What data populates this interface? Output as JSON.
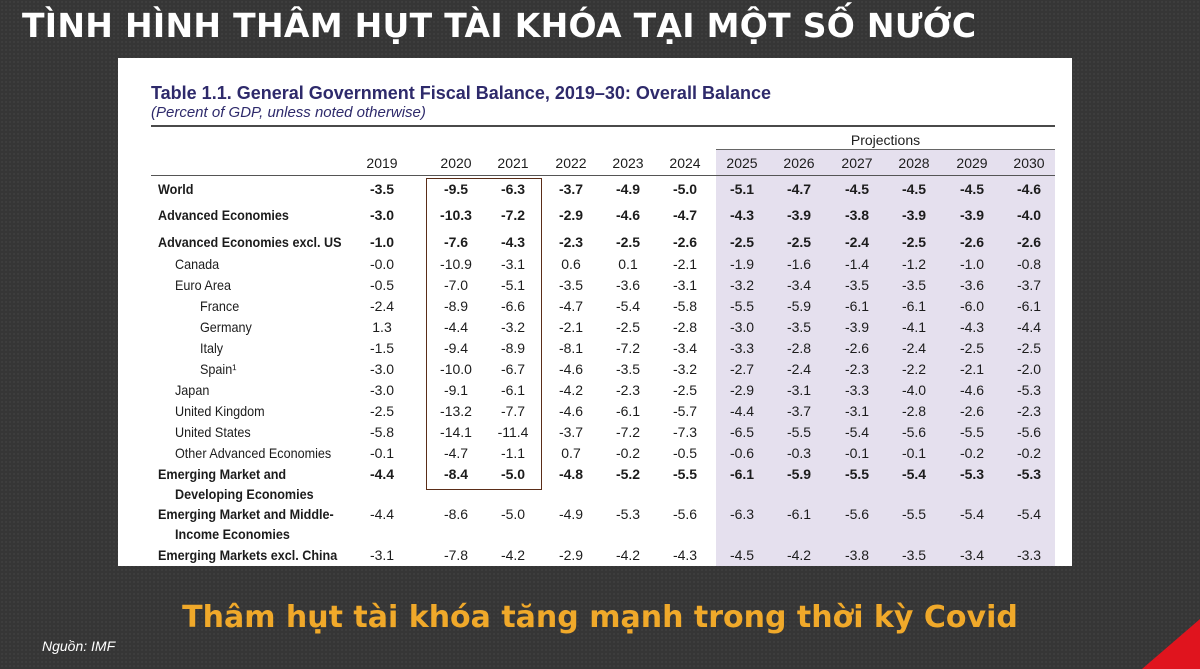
{
  "slide": {
    "title": "TÌNH HÌNH THÂM HỤT TÀI KHÓA TẠI MỘT SỐ NƯỚC",
    "caption": "Thâm hụt tài khóa tăng mạnh trong thời kỳ Covid",
    "source": "Nguồn: IMF",
    "accent_color": "#e0141e",
    "caption_color": "#f0a92a"
  },
  "table": {
    "heading": "Table 1.1. General Government Fiscal Balance, 2019–30: Overall Balance",
    "subheading": "(Percent of GDP, unless noted otherwise)",
    "projections_label": "Projections",
    "years": [
      "2019",
      "2020",
      "2021",
      "2022",
      "2023",
      "2024",
      "2025",
      "2026",
      "2027",
      "2028",
      "2029",
      "2030"
    ],
    "rows": [
      {
        "label": "World",
        "bold": true,
        "values": [
          "-3.5",
          "-9.5",
          "-6.3",
          "-3.7",
          "-4.9",
          "-5.0",
          "-5.1",
          "-4.7",
          "-4.5",
          "-4.5",
          "-4.5",
          "-4.6"
        ]
      },
      {
        "label": "Advanced Economies",
        "bold": true,
        "values": [
          "-3.0",
          "-10.3",
          "-7.2",
          "-2.9",
          "-4.6",
          "-4.7",
          "-4.3",
          "-3.9",
          "-3.8",
          "-3.9",
          "-3.9",
          "-4.0"
        ]
      },
      {
        "label": "Advanced Economies excl. US",
        "bold": true,
        "values": [
          "-1.0",
          "-7.6",
          "-4.3",
          "-2.3",
          "-2.5",
          "-2.6",
          "-2.5",
          "-2.5",
          "-2.4",
          "-2.5",
          "-2.6",
          "-2.6"
        ]
      },
      {
        "label": "Canada",
        "values": [
          "-0.0",
          "-10.9",
          "-3.1",
          "0.6",
          "0.1",
          "-2.1",
          "-1.9",
          "-1.6",
          "-1.4",
          "-1.2",
          "-1.0",
          "-0.8"
        ]
      },
      {
        "label": "Euro Area",
        "values": [
          "-0.5",
          "-7.0",
          "-5.1",
          "-3.5",
          "-3.6",
          "-3.1",
          "-3.2",
          "-3.4",
          "-3.5",
          "-3.5",
          "-3.6",
          "-3.7"
        ]
      },
      {
        "label": "France",
        "values": [
          "-2.4",
          "-8.9",
          "-6.6",
          "-4.7",
          "-5.4",
          "-5.8",
          "-5.5",
          "-5.9",
          "-6.1",
          "-6.1",
          "-6.0",
          "-6.1"
        ]
      },
      {
        "label": "Germany",
        "values": [
          "1.3",
          "-4.4",
          "-3.2",
          "-2.1",
          "-2.5",
          "-2.8",
          "-3.0",
          "-3.5",
          "-3.9",
          "-4.1",
          "-4.3",
          "-4.4"
        ]
      },
      {
        "label": "Italy",
        "values": [
          "-1.5",
          "-9.4",
          "-8.9",
          "-8.1",
          "-7.2",
          "-3.4",
          "-3.3",
          "-2.8",
          "-2.6",
          "-2.4",
          "-2.5",
          "-2.5"
        ]
      },
      {
        "label": "Spain¹",
        "values": [
          "-3.0",
          "-10.0",
          "-6.7",
          "-4.6",
          "-3.5",
          "-3.2",
          "-2.7",
          "-2.4",
          "-2.3",
          "-2.2",
          "-2.1",
          "-2.0"
        ]
      },
      {
        "label": "Japan",
        "values": [
          "-3.0",
          "-9.1",
          "-6.1",
          "-4.2",
          "-2.3",
          "-2.5",
          "-2.9",
          "-3.1",
          "-3.3",
          "-4.0",
          "-4.6",
          "-5.3"
        ]
      },
      {
        "label": "United Kingdom",
        "values": [
          "-2.5",
          "-13.2",
          "-7.7",
          "-4.6",
          "-6.1",
          "-5.7",
          "-4.4",
          "-3.7",
          "-3.1",
          "-2.8",
          "-2.6",
          "-2.3"
        ]
      },
      {
        "label": "United States",
        "values": [
          "-5.8",
          "-14.1",
          "-11.4",
          "-3.7",
          "-7.2",
          "-7.3",
          "-6.5",
          "-5.5",
          "-5.4",
          "-5.6",
          "-5.5",
          "-5.6"
        ]
      },
      {
        "label": "Other Advanced Economies",
        "values": [
          "-0.1",
          "-4.7",
          "-1.1",
          "0.7",
          "-0.2",
          "-0.5",
          "-0.6",
          "-0.3",
          "-0.1",
          "-0.1",
          "-0.2",
          "-0.2"
        ]
      },
      {
        "label": "Emerging Market and",
        "label2": "Developing Economies",
        "bold": true,
        "values": [
          "-4.4",
          "-8.4",
          "-5.0",
          "-4.8",
          "-5.2",
          "-5.5",
          "-6.1",
          "-5.9",
          "-5.5",
          "-5.4",
          "-5.3",
          "-5.3"
        ]
      },
      {
        "label": "Emerging Market and Middle-",
        "label2": "Income Economies",
        "values": [
          "-4.4",
          "-8.6",
          "-5.0",
          "-4.9",
          "-5.3",
          "-5.6",
          "-6.3",
          "-6.1",
          "-5.6",
          "-5.5",
          "-5.4",
          "-5.4"
        ]
      },
      {
        "label": "Emerging Markets excl. China",
        "values": [
          "-3.1",
          "-7.8",
          "-4.2",
          "-2.9",
          "-4.2",
          "-4.3",
          "-4.5",
          "-4.2",
          "-3.8",
          "-3.5",
          "-3.4",
          "-3.3"
        ]
      }
    ]
  }
}
